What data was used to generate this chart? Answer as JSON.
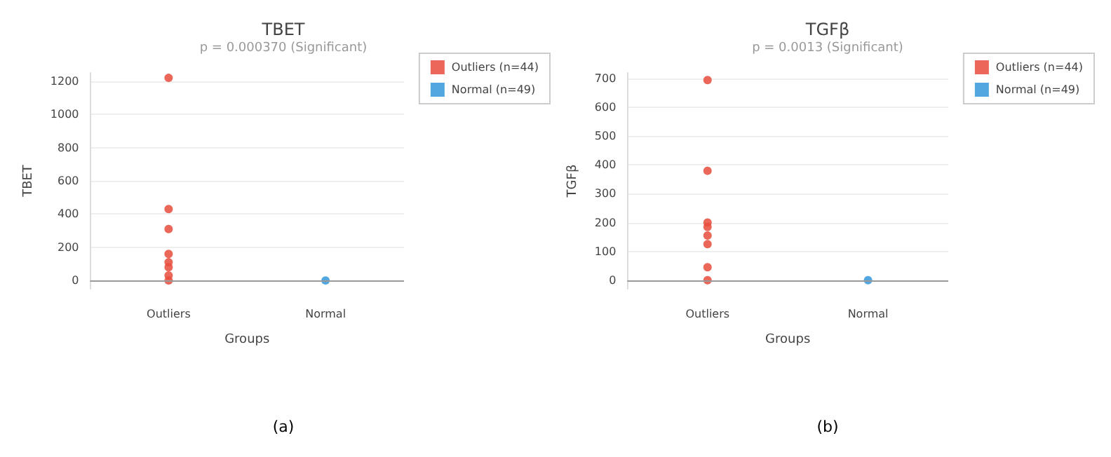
{
  "chart_data": [
    {
      "type": "scatter",
      "title": "TBET",
      "subtitle": "p = 0.000370 (Significant)",
      "xlabel": "Groups",
      "ylabel": "TBET",
      "categories": [
        "Outliers",
        "Normal"
      ],
      "ylim": [
        -50,
        1250
      ],
      "yticks": [
        0,
        200,
        400,
        600,
        800,
        1000,
        1200
      ],
      "grid": "y",
      "legend": "top right",
      "marker": "circle",
      "annotations": [
        "(a)"
      ],
      "series": [
        {
          "name": "Outliers (n=44)",
          "color": "#e74c3c",
          "x": [
            "Outliers",
            "Outliers",
            "Outliers",
            "Outliers",
            "Outliers",
            "Outliers",
            "Outliers",
            "Outliers"
          ],
          "values": [
            1220,
            430,
            310,
            160,
            110,
            80,
            30,
            0
          ]
        },
        {
          "name": "Normal (n=49)",
          "color": "#3498db",
          "x": [
            "Normal"
          ],
          "values": [
            0
          ]
        }
      ]
    },
    {
      "type": "scatter",
      "title": "TGFβ",
      "subtitle": "p = 0.0013 (Significant)",
      "xlabel": "Groups",
      "ylabel": "TGFβ",
      "categories": [
        "Outliers",
        "Normal"
      ],
      "ylim": [
        -30,
        720
      ],
      "yticks": [
        0,
        100,
        200,
        300,
        400,
        500,
        600,
        700
      ],
      "grid": "y",
      "legend": "top right",
      "marker": "circle",
      "annotations": [
        "(b)"
      ],
      "series": [
        {
          "name": "Outliers (n=44)",
          "color": "#e74c3c",
          "x": [
            "Outliers",
            "Outliers",
            "Outliers",
            "Outliers",
            "Outliers",
            "Outliers",
            "Outliers",
            "Outliers"
          ],
          "values": [
            695,
            380,
            200,
            185,
            155,
            125,
            45,
            0
          ]
        },
        {
          "name": "Normal (n=49)",
          "color": "#3498db",
          "x": [
            "Normal"
          ],
          "values": [
            0
          ]
        }
      ]
    }
  ]
}
